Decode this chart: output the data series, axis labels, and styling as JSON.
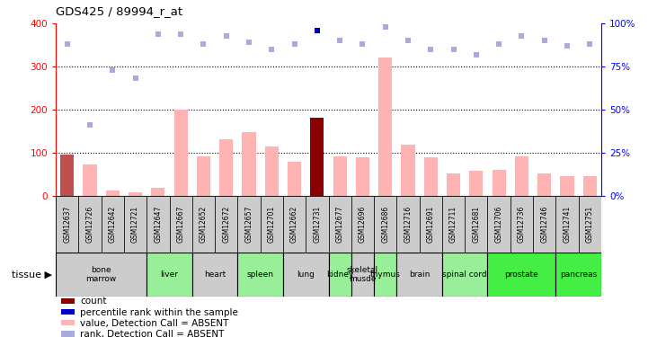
{
  "title": "GDS425 / 89994_r_at",
  "samples": [
    "GSM12637",
    "GSM12726",
    "GSM12642",
    "GSM12721",
    "GSM12647",
    "GSM12667",
    "GSM12652",
    "GSM12672",
    "GSM12657",
    "GSM12701",
    "GSM12662",
    "GSM12731",
    "GSM12677",
    "GSM12696",
    "GSM12686",
    "GSM12716",
    "GSM12691",
    "GSM12711",
    "GSM12681",
    "GSM12706",
    "GSM12736",
    "GSM12746",
    "GSM12741",
    "GSM12751"
  ],
  "bar_values": [
    95,
    72,
    12,
    8,
    18,
    200,
    92,
    130,
    147,
    113,
    78,
    180,
    92,
    88,
    322,
    118,
    88,
    52,
    58,
    60,
    92,
    52,
    45,
    45
  ],
  "bar_colors": [
    "#c0504d",
    "#ffb3b3",
    "#ffb3b3",
    "#ffb3b3",
    "#ffb3b3",
    "#ffb3b3",
    "#ffb3b3",
    "#ffb3b3",
    "#ffb3b3",
    "#ffb3b3",
    "#ffb3b3",
    "#8b0000",
    "#ffb3b3",
    "#ffb3b3",
    "#ffb3b3",
    "#ffb3b3",
    "#ffb3b3",
    "#ffb3b3",
    "#ffb3b3",
    "#ffb3b3",
    "#ffb3b3",
    "#ffb3b3",
    "#ffb3b3",
    "#ffb3b3"
  ],
  "rank_values": [
    88,
    41,
    73,
    68,
    94,
    94,
    88,
    93,
    89,
    85,
    88,
    96,
    90,
    88,
    98,
    90,
    85,
    85,
    82,
    88,
    93,
    90,
    87,
    88
  ],
  "rank_colors": [
    "#aaaadd",
    "#aaaadd",
    "#aaaadd",
    "#aaaadd",
    "#aaaadd",
    "#aaaadd",
    "#aaaadd",
    "#aaaadd",
    "#aaaadd",
    "#aaaadd",
    "#aaaadd",
    "#0000aa",
    "#aaaadd",
    "#aaaadd",
    "#aaaadd",
    "#aaaadd",
    "#aaaadd",
    "#aaaadd",
    "#aaaadd",
    "#aaaadd",
    "#aaaadd",
    "#aaaadd",
    "#aaaadd",
    "#aaaadd"
  ],
  "tissues": [
    {
      "label": "bone\nmarrow",
      "start": 0,
      "end": 4,
      "color": "#cccccc"
    },
    {
      "label": "liver",
      "start": 4,
      "end": 6,
      "color": "#99ee99"
    },
    {
      "label": "heart",
      "start": 6,
      "end": 8,
      "color": "#cccccc"
    },
    {
      "label": "spleen",
      "start": 8,
      "end": 10,
      "color": "#99ee99"
    },
    {
      "label": "lung",
      "start": 10,
      "end": 12,
      "color": "#cccccc"
    },
    {
      "label": "kidney",
      "start": 12,
      "end": 13,
      "color": "#99ee99"
    },
    {
      "label": "skeletal\nmusde",
      "start": 13,
      "end": 14,
      "color": "#cccccc"
    },
    {
      "label": "thymus",
      "start": 14,
      "end": 15,
      "color": "#99ee99"
    },
    {
      "label": "brain",
      "start": 15,
      "end": 17,
      "color": "#cccccc"
    },
    {
      "label": "spinal cord",
      "start": 17,
      "end": 19,
      "color": "#99ee99"
    },
    {
      "label": "prostate",
      "start": 19,
      "end": 22,
      "color": "#44ee44"
    },
    {
      "label": "pancreas",
      "start": 22,
      "end": 24,
      "color": "#44ee44"
    }
  ],
  "ylim_left": [
    0,
    400
  ],
  "ylim_right": [
    0,
    100
  ],
  "yticks_left": [
    0,
    100,
    200,
    300,
    400
  ],
  "yticks_right": [
    0,
    25,
    50,
    75,
    100
  ],
  "yticklabels_right": [
    "0%",
    "25%",
    "50%",
    "75%",
    "100%"
  ],
  "legend_items": [
    {
      "color": "#8b0000",
      "label": "count"
    },
    {
      "color": "#0000cc",
      "label": "percentile rank within the sample"
    },
    {
      "color": "#ffb3b3",
      "label": "value, Detection Call = ABSENT"
    },
    {
      "color": "#aaaadd",
      "label": "rank, Detection Call = ABSENT"
    }
  ]
}
